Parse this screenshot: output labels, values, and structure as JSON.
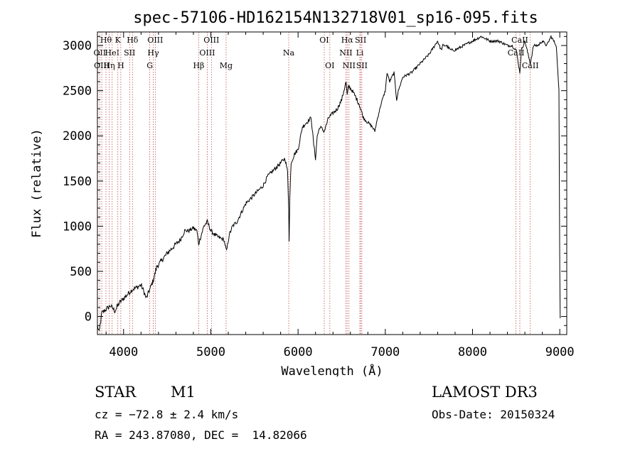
{
  "chart_data": {
    "type": "line",
    "title": "spec-57106-HD162154N132718V01_sp16-095.fits",
    "xlabel": "Wavelength (Å)",
    "ylabel": "Flux (relative)",
    "xlim": [
      3700,
      9080
    ],
    "ylim": [
      -200,
      3150
    ],
    "xticks": [
      4000,
      5000,
      6000,
      7000,
      8000,
      9000
    ],
    "yticks": [
      0,
      500,
      1000,
      1500,
      2000,
      2500,
      3000
    ],
    "grid": false,
    "line_color": "#000000",
    "marker_color": "#c0504d",
    "series": [
      {
        "name": "flux",
        "anchors": [
          [
            3700,
            -100
          ],
          [
            3720,
            -180
          ],
          [
            3750,
            40
          ],
          [
            3800,
            80
          ],
          [
            3850,
            120
          ],
          [
            3900,
            60
          ],
          [
            3950,
            150
          ],
          [
            4000,
            200
          ],
          [
            4050,
            250
          ],
          [
            4100,
            300
          ],
          [
            4150,
            320
          ],
          [
            4200,
            350
          ],
          [
            4230,
            280
          ],
          [
            4260,
            200
          ],
          [
            4300,
            300
          ],
          [
            4340,
            400
          ],
          [
            4380,
            550
          ],
          [
            4420,
            600
          ],
          [
            4460,
            650
          ],
          [
            4500,
            700
          ],
          [
            4550,
            750
          ],
          [
            4600,
            800
          ],
          [
            4650,
            850
          ],
          [
            4700,
            950
          ],
          [
            4750,
            950
          ],
          [
            4800,
            980
          ],
          [
            4840,
            950
          ],
          [
            4860,
            800
          ],
          [
            4880,
            870
          ],
          [
            4920,
            1000
          ],
          [
            4960,
            1050
          ],
          [
            5000,
            950
          ],
          [
            5050,
            900
          ],
          [
            5100,
            870
          ],
          [
            5150,
            850
          ],
          [
            5180,
            720
          ],
          [
            5210,
            900
          ],
          [
            5250,
            1000
          ],
          [
            5300,
            1050
          ],
          [
            5350,
            1150
          ],
          [
            5400,
            1250
          ],
          [
            5450,
            1300
          ],
          [
            5500,
            1350
          ],
          [
            5550,
            1400
          ],
          [
            5600,
            1450
          ],
          [
            5650,
            1550
          ],
          [
            5700,
            1600
          ],
          [
            5750,
            1650
          ],
          [
            5800,
            1700
          ],
          [
            5850,
            1750
          ],
          [
            5880,
            1600
          ],
          [
            5893,
            1200
          ],
          [
            5898,
            850
          ],
          [
            5905,
            1300
          ],
          [
            5920,
            1700
          ],
          [
            5960,
            1800
          ],
          [
            6000,
            1850
          ],
          [
            6050,
            2100
          ],
          [
            6100,
            2150
          ],
          [
            6150,
            2200
          ],
          [
            6180,
            1900
          ],
          [
            6200,
            1750
          ],
          [
            6220,
            2000
          ],
          [
            6250,
            2100
          ],
          [
            6300,
            2050
          ],
          [
            6350,
            2200
          ],
          [
            6400,
            2250
          ],
          [
            6450,
            2300
          ],
          [
            6500,
            2400
          ],
          [
            6550,
            2600
          ],
          [
            6563,
            2450
          ],
          [
            6580,
            2550
          ],
          [
            6620,
            2500
          ],
          [
            6650,
            2450
          ],
          [
            6700,
            2350
          ],
          [
            6750,
            2200
          ],
          [
            6800,
            2150
          ],
          [
            6850,
            2100
          ],
          [
            6880,
            2050
          ],
          [
            6900,
            2150
          ],
          [
            6950,
            2350
          ],
          [
            7000,
            2500
          ],
          [
            7020,
            2700
          ],
          [
            7050,
            2600
          ],
          [
            7100,
            2700
          ],
          [
            7130,
            2400
          ],
          [
            7150,
            2500
          ],
          [
            7200,
            2650
          ],
          [
            7300,
            2700
          ],
          [
            7400,
            2800
          ],
          [
            7500,
            2900
          ],
          [
            7600,
            3050
          ],
          [
            7640,
            2950
          ],
          [
            7660,
            3000
          ],
          [
            7700,
            3000
          ],
          [
            7750,
            2950
          ],
          [
            7800,
            2950
          ],
          [
            7900,
            3000
          ],
          [
            8000,
            3050
          ],
          [
            8100,
            3100
          ],
          [
            8200,
            3050
          ],
          [
            8300,
            3050
          ],
          [
            8400,
            3000
          ],
          [
            8450,
            3000
          ],
          [
            8500,
            2950
          ],
          [
            8542,
            2700
          ],
          [
            8560,
            2950
          ],
          [
            8600,
            3050
          ],
          [
            8662,
            2800
          ],
          [
            8700,
            3000
          ],
          [
            8750,
            3000
          ],
          [
            8800,
            3050
          ],
          [
            8850,
            3000
          ],
          [
            8900,
            3100
          ],
          [
            8960,
            3000
          ],
          [
            8990,
            2500
          ],
          [
            9000,
            500
          ],
          [
            9005,
            -20
          ]
        ]
      }
    ],
    "line_markers": [
      {
        "wavelength": 3727,
        "labels": [
          "OII"
        ],
        "row": 1
      },
      {
        "wavelength": 3750,
        "labels": [
          "OIII"
        ],
        "row": 2
      },
      {
        "wavelength": 3798,
        "labels": [
          "Hθ"
        ],
        "row": 0
      },
      {
        "wavelength": 3835,
        "labels": [
          "Hη"
        ],
        "row": 2
      },
      {
        "wavelength": 3869,
        "labels": [
          "HeI"
        ],
        "row": 1
      },
      {
        "wavelength": 3934,
        "labels": [
          "K"
        ],
        "row": 0
      },
      {
        "wavelength": 3968,
        "labels": [
          "H"
        ],
        "row": 2
      },
      {
        "wavelength": 4069,
        "labels": [
          "SII"
        ],
        "row": 1
      },
      {
        "wavelength": 4102,
        "labels": [
          "Hδ"
        ],
        "row": 0
      },
      {
        "wavelength": 4300,
        "labels": [
          "G"
        ],
        "row": 2
      },
      {
        "wavelength": 4340,
        "labels": [
          "Hγ"
        ],
        "row": 1
      },
      {
        "wavelength": 4363,
        "labels": [
          "OIII"
        ],
        "row": 0
      },
      {
        "wavelength": 4861,
        "labels": [
          "Hβ"
        ],
        "row": 2
      },
      {
        "wavelength": 4959,
        "labels": [
          "OIII"
        ],
        "row": 1
      },
      {
        "wavelength": 5007,
        "labels": [
          "OIII"
        ],
        "row": 0
      },
      {
        "wavelength": 5175,
        "labels": [
          "Mg"
        ],
        "row": 2
      },
      {
        "wavelength": 5893,
        "labels": [
          "Na"
        ],
        "row": 1
      },
      {
        "wavelength": 6300,
        "labels": [
          "OI"
        ],
        "row": 0
      },
      {
        "wavelength": 6364,
        "labels": [
          "OI"
        ],
        "row": 2
      },
      {
        "wavelength": 6548,
        "labels": [
          "NII"
        ],
        "row": 1
      },
      {
        "wavelength": 6563,
        "labels": [
          "Hα"
        ],
        "row": 0
      },
      {
        "wavelength": 6584,
        "labels": [
          "NII"
        ],
        "row": 2
      },
      {
        "wavelength": 6708,
        "labels": [
          "Li"
        ],
        "row": 1
      },
      {
        "wavelength": 6717,
        "labels": [
          "SII"
        ],
        "row": 0
      },
      {
        "wavelength": 6731,
        "labels": [
          "SII"
        ],
        "row": 2
      },
      {
        "wavelength": 8498,
        "labels": [
          "CaII"
        ],
        "row": 1
      },
      {
        "wavelength": 8542,
        "labels": [
          "CaII"
        ],
        "row": 0
      },
      {
        "wavelength": 8662,
        "labels": [
          "CaII"
        ],
        "row": 2
      }
    ]
  },
  "info": {
    "object_class": "STAR",
    "subclass": "M1",
    "survey": "LAMOST DR3",
    "cz": "cz = −72.8 ± 2.4 km/s",
    "obs_date": "Obs-Date: 20150324",
    "coords": "RA = 243.87080, DEC =  14.82066"
  }
}
